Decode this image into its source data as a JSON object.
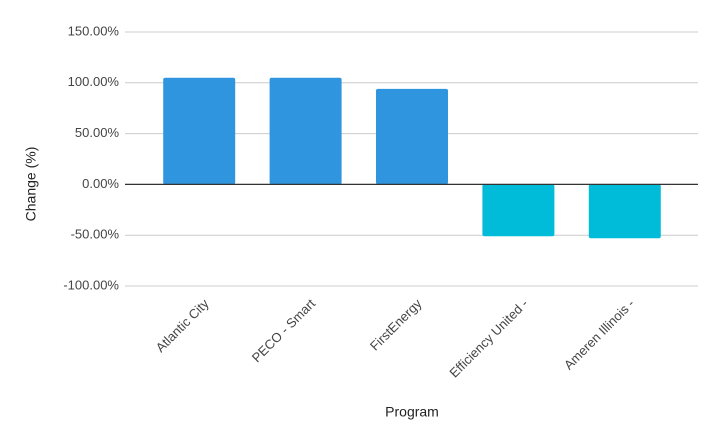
{
  "chart_data": {
    "type": "bar",
    "x_label": "Program",
    "y_label": "Change (%)",
    "categories": [
      "Atlantic City",
      "PECO - Smart",
      "FirstEnergy",
      "Efficiency United -",
      "Ameren Illinois -"
    ],
    "values": [
      105,
      105,
      94,
      -51,
      -53
    ],
    "colors": [
      "#3095df",
      "#3095df",
      "#3095df",
      "#00bcd9",
      "#00bcd9"
    ],
    "ylim": [
      -100,
      150
    ],
    "yticks": [
      {
        "value": -100,
        "label": "-100.00%"
      },
      {
        "value": -50,
        "label": "-50.00%"
      },
      {
        "value": 0,
        "label": "0.00%"
      },
      {
        "value": 50,
        "label": "50.00%"
      },
      {
        "value": 100,
        "label": "100.00%"
      },
      {
        "value": 150,
        "label": "150.00%"
      }
    ],
    "grid": true
  }
}
